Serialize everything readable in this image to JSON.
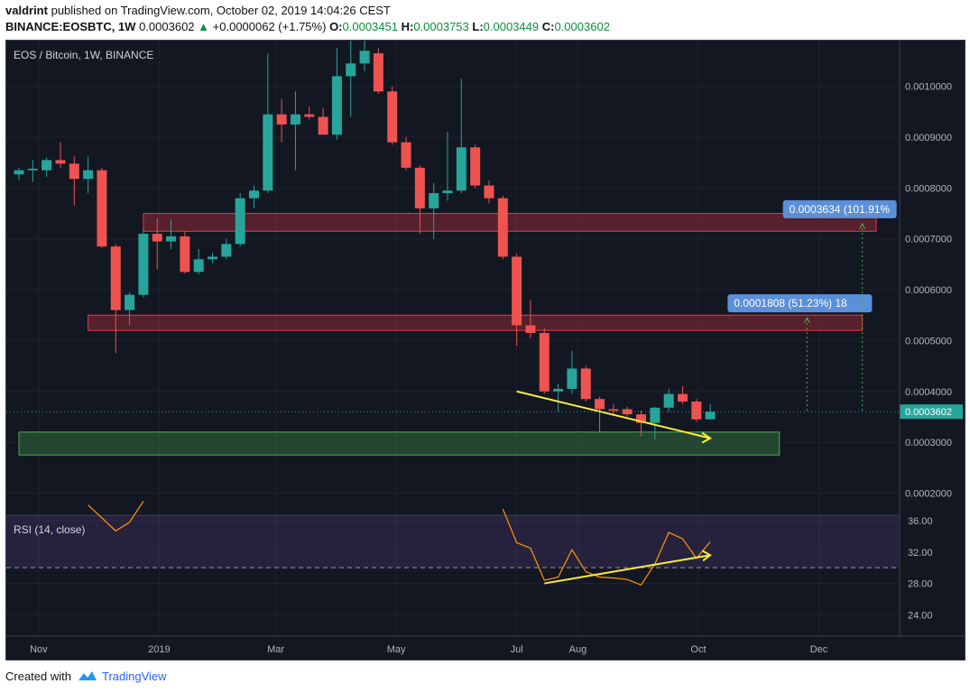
{
  "header": {
    "author": "valdrint",
    "published": "published on TradingView.com, October 02, 2019 14:04:26 CEST",
    "symbol": "BINANCE:EOSBTC, 1W",
    "last": "0.0003602",
    "arrow": "▲",
    "change": "+0.0000062 (+1.75%)",
    "o_label": "O:",
    "o_value": "0.0003451",
    "h_label": "H:",
    "h_value": "0.0003753",
    "l_label": "L:",
    "l_value": "0.0003449",
    "c_label": "C:",
    "c_value": "0.0003602"
  },
  "chart": {
    "legend": "EOS / Bitcoin, 1W, BINANCE",
    "last_price_label": "0.0003602",
    "measure_high": "0.0003634 (101.91%",
    "measure_mid": "0.0001808 (51.23%) 18",
    "rsi_label": "RSI (14, close)"
  },
  "footer": {
    "created": "Created with",
    "brand": "TradingView"
  },
  "colors": {
    "up": "#26a69a",
    "down": "#ef5350",
    "background": "#131722",
    "resistance_zone": "#f23645",
    "support_zone": "#4caf50",
    "trendline": "#ffeb3b",
    "rsi_line": "#ff9800",
    "rsi_band": "#7e57c2",
    "measure_box": "#5b8fd8"
  },
  "chart_data": [
    {
      "type": "candlestick",
      "title": "EOS / Bitcoin, 1W, BINANCE",
      "y_scale": "linear",
      "ylim": [
        0.00016,
        0.00109
      ],
      "y_ticks": [
        "0.0010000",
        "0.0009000",
        "0.0008000",
        "0.0007000",
        "0.0006000",
        "0.0005000",
        "0.0004000",
        "0.0003000",
        "0.0002000"
      ],
      "x_ticks": [
        "Nov",
        "2019",
        "Mar",
        "May",
        "Jul",
        "Aug",
        "Oct",
        "Dec"
      ],
      "x_start": "2018-10-22",
      "x_end": "2019-12-30",
      "candles": [
        {
          "date": "2018-10-22",
          "open": 0.000827,
          "high": 0.00084,
          "low": 0.000815,
          "close": 0.000835
        },
        {
          "date": "2018-10-29",
          "open": 0.000835,
          "high": 0.000855,
          "low": 0.000812,
          "close": 0.000838
        },
        {
          "date": "2018-11-05",
          "open": 0.000835,
          "high": 0.00086,
          "low": 0.000822,
          "close": 0.000855
        },
        {
          "date": "2018-11-12",
          "open": 0.000855,
          "high": 0.00089,
          "low": 0.00084,
          "close": 0.000848
        },
        {
          "date": "2018-11-19",
          "open": 0.000848,
          "high": 0.000862,
          "low": 0.000765,
          "close": 0.000818
        },
        {
          "date": "2018-11-26",
          "open": 0.000818,
          "high": 0.000862,
          "low": 0.00079,
          "close": 0.000835
        },
        {
          "date": "2018-12-03",
          "open": 0.000835,
          "high": 0.00084,
          "low": 0.000682,
          "close": 0.000685
        },
        {
          "date": "2018-12-10",
          "open": 0.000685,
          "high": 0.00069,
          "low": 0.000475,
          "close": 0.00056
        },
        {
          "date": "2018-12-17",
          "open": 0.00056,
          "high": 0.000595,
          "low": 0.00053,
          "close": 0.00059
        },
        {
          "date": "2018-12-24",
          "open": 0.00059,
          "high": 0.00072,
          "low": 0.000585,
          "close": 0.00071
        },
        {
          "date": "2018-12-31",
          "open": 0.00071,
          "high": 0.00074,
          "low": 0.00064,
          "close": 0.000695
        },
        {
          "date": "2019-01-07",
          "open": 0.000695,
          "high": 0.000738,
          "low": 0.00068,
          "close": 0.000705
        },
        {
          "date": "2019-01-14",
          "open": 0.000705,
          "high": 0.000715,
          "low": 0.000632,
          "close": 0.000635
        },
        {
          "date": "2019-01-21",
          "open": 0.000635,
          "high": 0.00068,
          "low": 0.00063,
          "close": 0.00066
        },
        {
          "date": "2019-01-28",
          "open": 0.00066,
          "high": 0.000672,
          "low": 0.000652,
          "close": 0.000665
        },
        {
          "date": "2019-02-04",
          "open": 0.000665,
          "high": 0.0007,
          "low": 0.00066,
          "close": 0.00069
        },
        {
          "date": "2019-02-11",
          "open": 0.00069,
          "high": 0.00079,
          "low": 0.000685,
          "close": 0.00078
        },
        {
          "date": "2019-02-18",
          "open": 0.00078,
          "high": 0.000805,
          "low": 0.00076,
          "close": 0.000795
        },
        {
          "date": "2019-02-25",
          "open": 0.000795,
          "high": 0.001065,
          "low": 0.00079,
          "close": 0.000945
        },
        {
          "date": "2019-03-04",
          "open": 0.000945,
          "high": 0.000975,
          "low": 0.00089,
          "close": 0.000925
        },
        {
          "date": "2019-03-11",
          "open": 0.000925,
          "high": 0.00099,
          "low": 0.000835,
          "close": 0.000945
        },
        {
          "date": "2019-03-18",
          "open": 0.000945,
          "high": 0.00096,
          "low": 0.000935,
          "close": 0.00094
        },
        {
          "date": "2019-03-25",
          "open": 0.00094,
          "high": 0.000958,
          "low": 0.00091,
          "close": 0.000905
        },
        {
          "date": "2019-04-01",
          "open": 0.000905,
          "high": 0.001075,
          "low": 0.000895,
          "close": 0.00102
        },
        {
          "date": "2019-04-08",
          "open": 0.00102,
          "high": 0.0011,
          "low": 0.00094,
          "close": 0.001045
        },
        {
          "date": "2019-04-15",
          "open": 0.001045,
          "high": 0.0011,
          "low": 0.00103,
          "close": 0.00107
        },
        {
          "date": "2019-04-22",
          "open": 0.001065,
          "high": 0.001075,
          "low": 0.000985,
          "close": 0.00099
        },
        {
          "date": "2019-04-29",
          "open": 0.00099,
          "high": 0.001,
          "low": 0.000885,
          "close": 0.00089
        },
        {
          "date": "2019-05-06",
          "open": 0.00089,
          "high": 0.0009,
          "low": 0.000835,
          "close": 0.00084
        },
        {
          "date": "2019-05-13",
          "open": 0.00084,
          "high": 0.000845,
          "low": 0.00071,
          "close": 0.00076
        },
        {
          "date": "2019-05-20",
          "open": 0.00076,
          "high": 0.00081,
          "low": 0.0007,
          "close": 0.00079
        },
        {
          "date": "2019-05-27",
          "open": 0.00079,
          "high": 0.00091,
          "low": 0.000775,
          "close": 0.000795
        },
        {
          "date": "2019-06-03",
          "open": 0.000795,
          "high": 0.001015,
          "low": 0.00079,
          "close": 0.00088
        },
        {
          "date": "2019-06-10",
          "open": 0.00088,
          "high": 0.000885,
          "low": 0.0008,
          "close": 0.000805
        },
        {
          "date": "2019-06-17",
          "open": 0.000805,
          "high": 0.000815,
          "low": 0.00077,
          "close": 0.00078
        },
        {
          "date": "2019-06-24",
          "open": 0.00078,
          "high": 0.000785,
          "low": 0.00066,
          "close": 0.000665
        },
        {
          "date": "2019-07-01",
          "open": 0.000665,
          "high": 0.00067,
          "low": 0.00049,
          "close": 0.00053
        },
        {
          "date": "2019-07-08",
          "open": 0.00053,
          "high": 0.00058,
          "low": 0.000505,
          "close": 0.000515
        },
        {
          "date": "2019-07-15",
          "open": 0.000515,
          "high": 0.000525,
          "low": 0.000395,
          "close": 0.0004
        },
        {
          "date": "2019-07-22",
          "open": 0.0004,
          "high": 0.000415,
          "low": 0.00036,
          "close": 0.000405
        },
        {
          "date": "2019-07-29",
          "open": 0.000405,
          "high": 0.00048,
          "low": 0.000395,
          "close": 0.000445
        },
        {
          "date": "2019-08-05",
          "open": 0.000445,
          "high": 0.00045,
          "low": 0.00038,
          "close": 0.000385
        },
        {
          "date": "2019-08-12",
          "open": 0.000385,
          "high": 0.00039,
          "low": 0.00032,
          "close": 0.000365
        },
        {
          "date": "2019-08-19",
          "open": 0.000365,
          "high": 0.000375,
          "low": 0.000355,
          "close": 0.000362
        },
        {
          "date": "2019-08-26",
          "open": 0.000365,
          "high": 0.00037,
          "low": 0.00035,
          "close": 0.000355
        },
        {
          "date": "2019-09-02",
          "open": 0.000355,
          "high": 0.000362,
          "low": 0.000312,
          "close": 0.000338
        },
        {
          "date": "2019-09-09",
          "open": 0.000338,
          "high": 0.00037,
          "low": 0.000305,
          "close": 0.000368
        },
        {
          "date": "2019-09-16",
          "open": 0.000368,
          "high": 0.000405,
          "low": 0.00036,
          "close": 0.000395
        },
        {
          "date": "2019-09-23",
          "open": 0.000395,
          "high": 0.00041,
          "low": 0.000375,
          "close": 0.00038
        },
        {
          "date": "2019-09-30",
          "open": 0.00038,
          "high": 0.000385,
          "low": 0.00034,
          "close": 0.000345
        },
        {
          "date": "2019-10-07",
          "open": 0.0003451,
          "high": 0.0003753,
          "low": 0.0003449,
          "close": 0.0003602
        }
      ],
      "last_price": 0.0003602,
      "zones": [
        {
          "kind": "resistance",
          "from": "2018-12-24",
          "to": "2019-12-30",
          "low": 0.000715,
          "high": 0.00075
        },
        {
          "kind": "resistance",
          "from": "2018-11-26",
          "to": "2019-12-23",
          "low": 0.00052,
          "high": 0.00055
        },
        {
          "kind": "support",
          "from": "2018-10-22",
          "to": "2019-11-11",
          "low": 0.000275,
          "high": 0.00032
        }
      ],
      "trendline": {
        "from": {
          "date": "2019-07-01",
          "value": 0.0004
        },
        "to": {
          "date": "2019-10-07",
          "value": 0.000308
        }
      },
      "measures": [
        {
          "label": "0.0001808 (51.23%) 18",
          "date": "2019-11-25",
          "from": 0.000362,
          "to": 0.000545
        },
        {
          "label": "0.0003634 (101.91%",
          "date": "2019-12-23",
          "from": 0.000362,
          "to": 0.00073
        }
      ]
    },
    {
      "type": "line",
      "title": "RSI (14, close)",
      "ylim": [
        21.5,
        36.7
      ],
      "y_ticks": [
        "36.00",
        "32.00",
        "28.00",
        "24.00"
      ],
      "band": [
        30,
        36.7
      ],
      "reference_level": 30,
      "points": [
        {
          "date": "2018-11-26",
          "value": 38.0
        },
        {
          "date": "2018-12-10",
          "value": 34.7
        },
        {
          "date": "2018-12-17",
          "value": 35.8
        },
        {
          "date": "2018-12-24",
          "value": 38.5
        },
        {
          "date": "2019-06-24",
          "value": 37.5
        },
        {
          "date": "2019-07-01",
          "value": 33.2
        },
        {
          "date": "2019-07-08",
          "value": 32.5
        },
        {
          "date": "2019-07-15",
          "value": 28.4
        },
        {
          "date": "2019-07-22",
          "value": 28.8
        },
        {
          "date": "2019-07-29",
          "value": 32.3
        },
        {
          "date": "2019-08-05",
          "value": 29.5
        },
        {
          "date": "2019-08-12",
          "value": 28.8
        },
        {
          "date": "2019-08-19",
          "value": 28.7
        },
        {
          "date": "2019-08-26",
          "value": 28.5
        },
        {
          "date": "2019-09-02",
          "value": 27.8
        },
        {
          "date": "2019-09-09",
          "value": 30.5
        },
        {
          "date": "2019-09-16",
          "value": 34.5
        },
        {
          "date": "2019-09-23",
          "value": 33.7
        },
        {
          "date": "2019-09-30",
          "value": 31.2
        },
        {
          "date": "2019-10-07",
          "value": 33.3
        }
      ],
      "trendline": {
        "from": {
          "date": "2019-07-15",
          "value": 28.0
        },
        "to": {
          "date": "2019-10-07",
          "value": 31.6
        }
      }
    }
  ]
}
